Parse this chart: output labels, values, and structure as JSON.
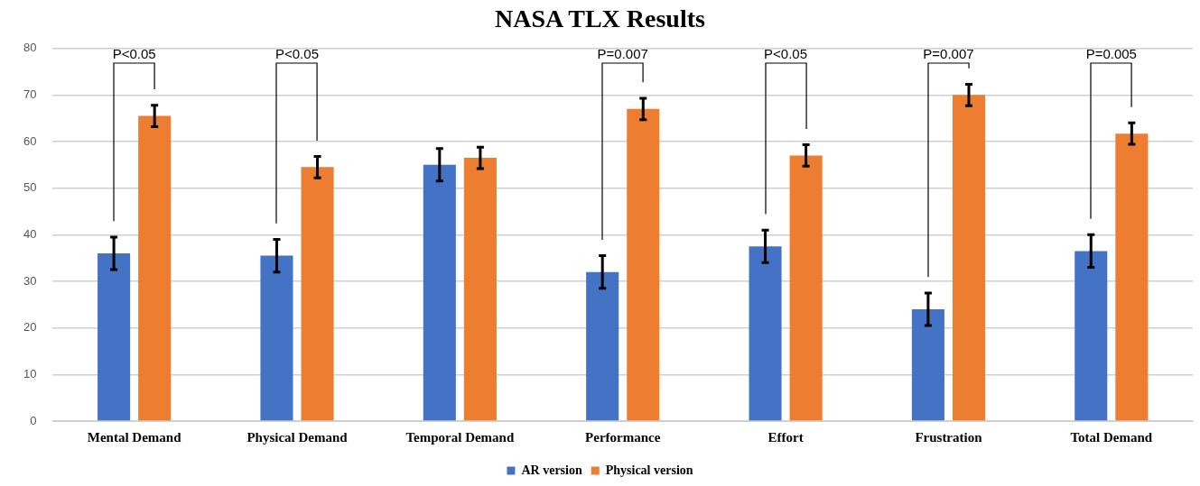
{
  "chart_data": {
    "type": "bar",
    "title": "NASA TLX Results",
    "categories": [
      "Mental Demand",
      "Physical Demand",
      "Temporal Demand",
      "Performance",
      "Effort",
      "Frustration",
      "Total Demand"
    ],
    "series": [
      {
        "name": "AR version",
        "color": "#4472c4",
        "values": [
          36,
          35.5,
          55,
          32,
          37.5,
          24,
          36.5
        ],
        "errors": [
          3.5,
          3.5,
          3.5,
          3.5,
          3.5,
          3.5,
          3.5
        ]
      },
      {
        "name": "Physical version",
        "color": "#ed7d31",
        "values": [
          65.5,
          54.5,
          56.5,
          67,
          57,
          70,
          61.7
        ],
        "errors": [
          2.3,
          2.3,
          2.3,
          2.3,
          2.3,
          2.3,
          2.3
        ]
      }
    ],
    "ylim": [
      0,
      80
    ],
    "yticks": [
      0,
      10,
      20,
      30,
      40,
      50,
      60,
      70,
      80
    ],
    "grid": "y",
    "legend": "bottom",
    "annotations": [
      "P<0.05",
      "P<0.05",
      "P=0.007",
      "P<0.05",
      "P=0.007",
      "P=0.005"
    ]
  }
}
